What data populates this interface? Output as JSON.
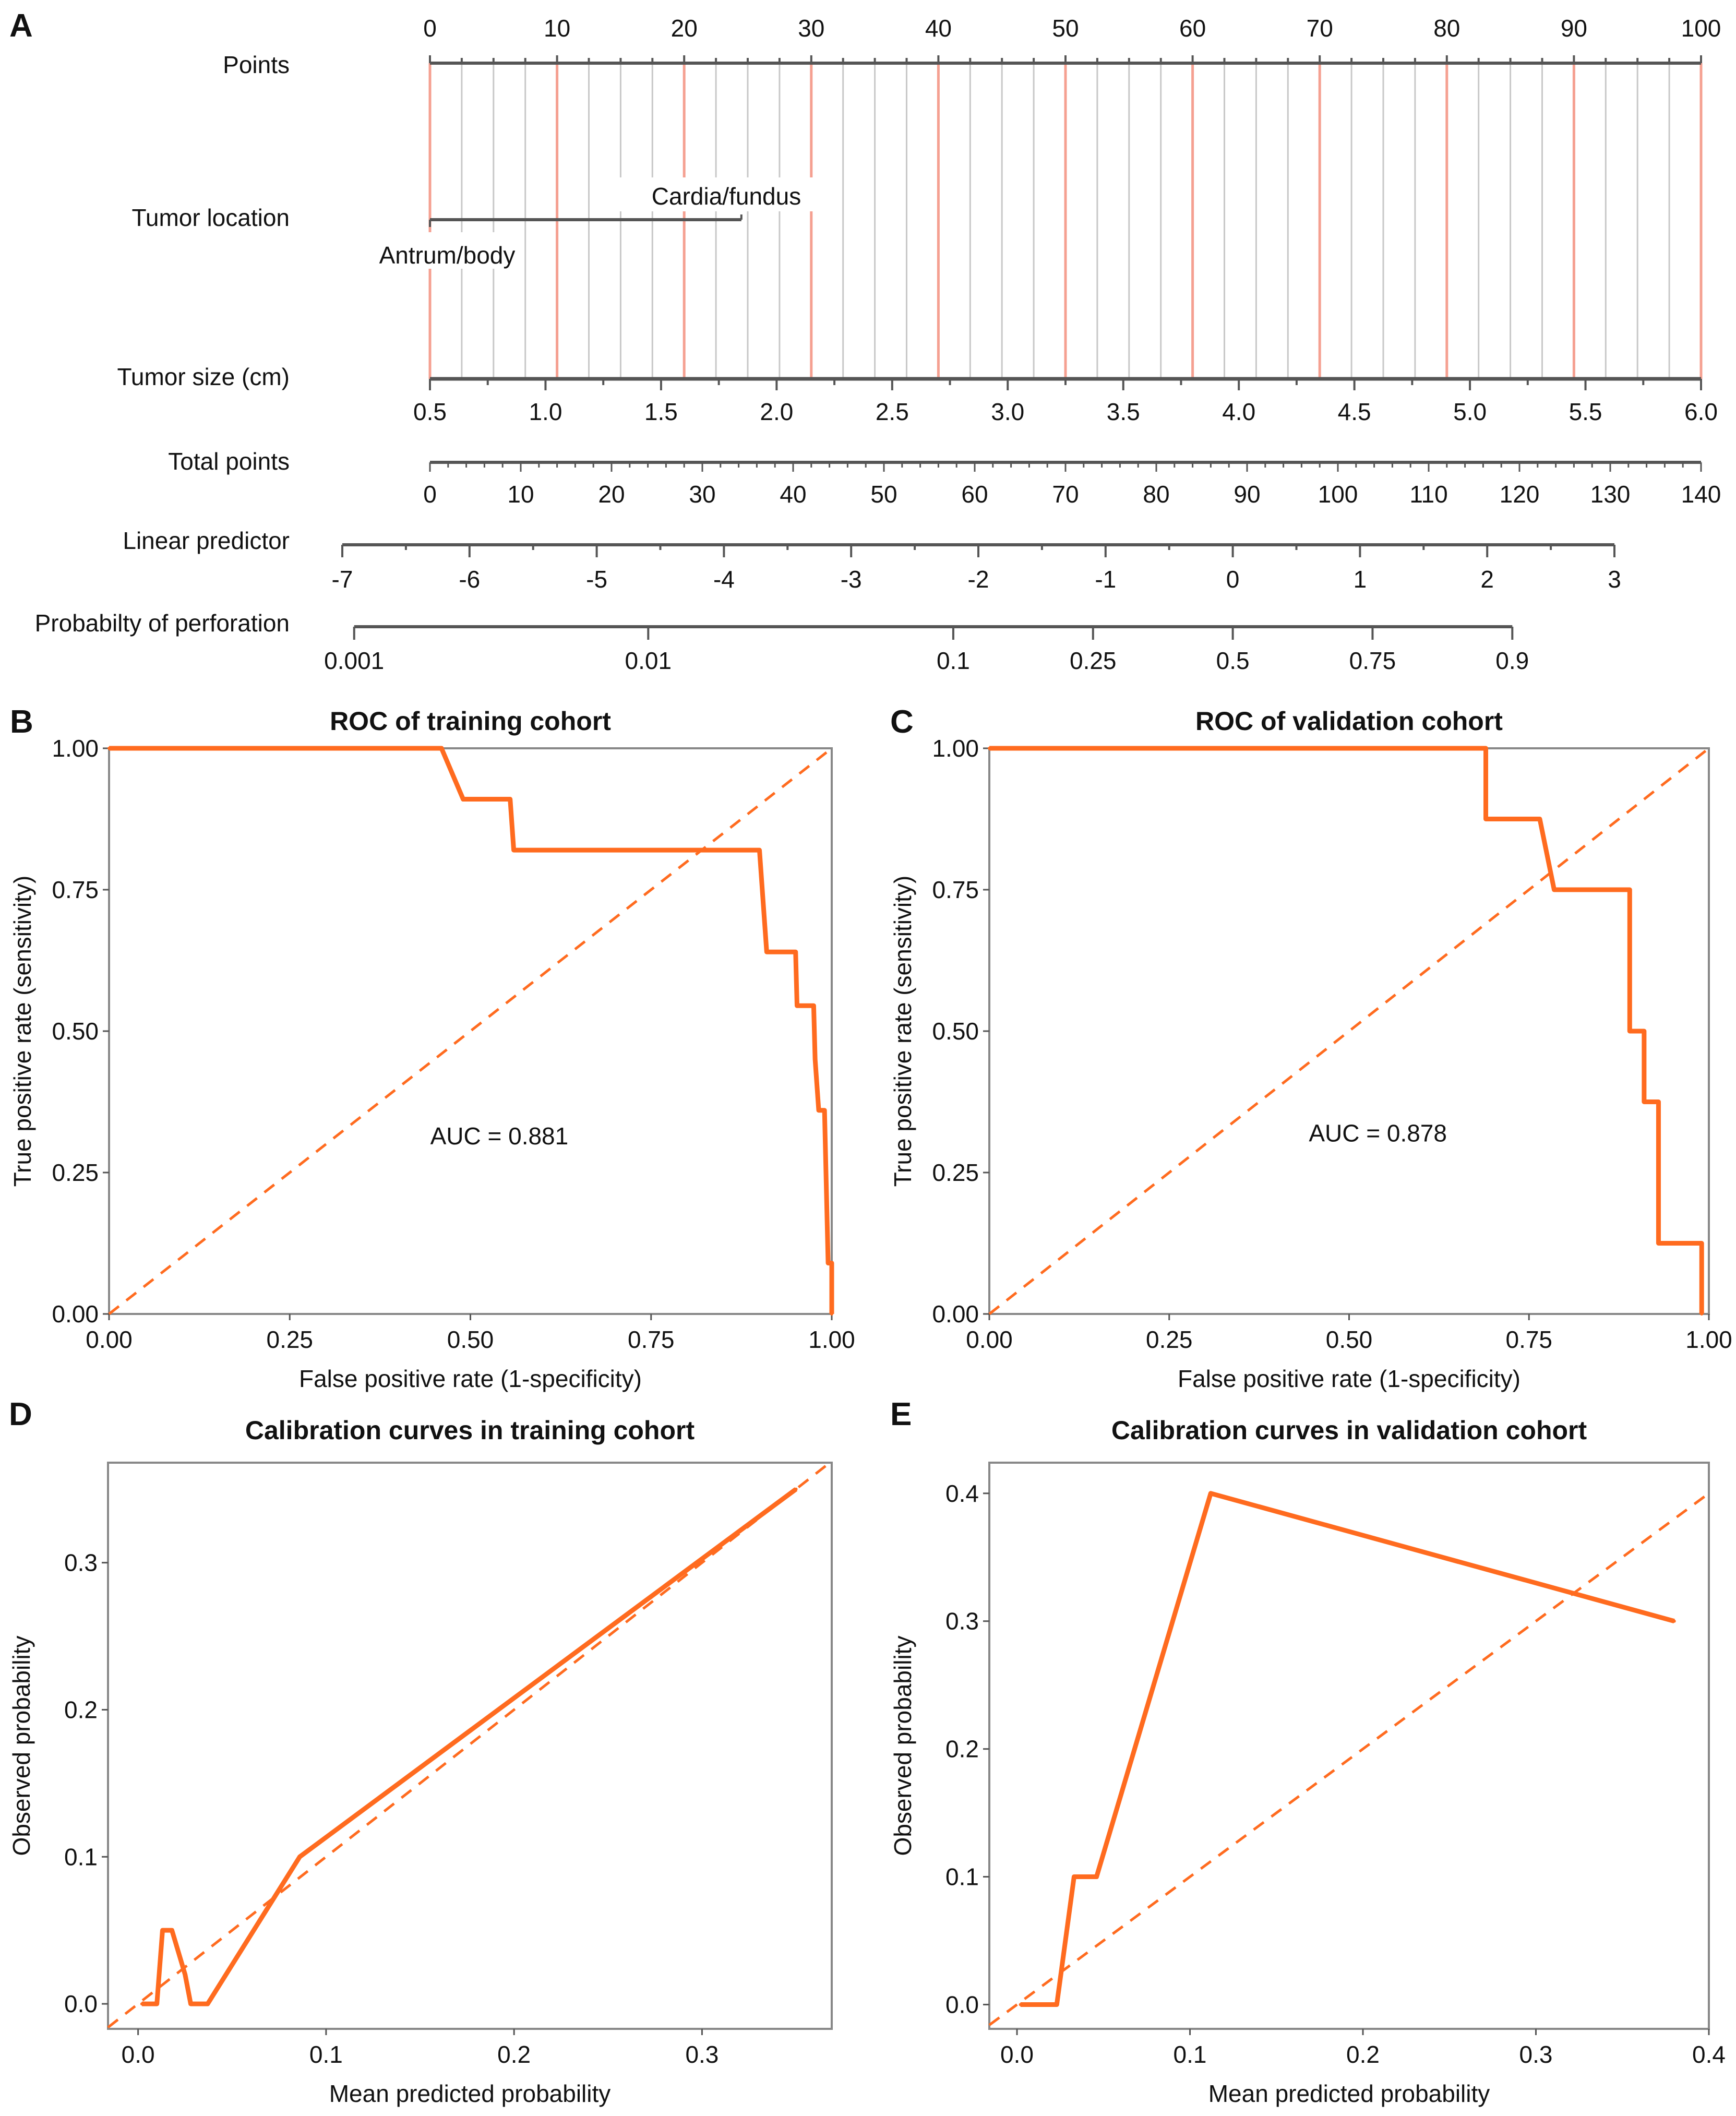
{
  "colors": {
    "curve": "#FF6B1F",
    "diag": "#FF6B1F",
    "refline": "#F5A091",
    "gridline": "#C8C8C8",
    "axis": "#555555"
  },
  "chart_data": [
    {
      "panel": "A",
      "type": "nomogram",
      "rows": [
        {
          "label": "Points",
          "ticks": [
            0,
            10,
            20,
            30,
            40,
            50,
            60,
            70,
            80,
            90,
            100
          ],
          "range": [
            0,
            100
          ]
        },
        {
          "label": "Tumor location",
          "levels": [
            {
              "name": "Antrum/body",
              "points": 0
            },
            {
              "name": "Cardia/fundus",
              "points": 24.5
            }
          ]
        },
        {
          "label": "Tumor size (cm)",
          "ticks": [
            "0.5",
            "1.0",
            "1.5",
            "2.0",
            "2.5",
            "3.0",
            "3.5",
            "4.0",
            "4.5",
            "5.0",
            "5.5",
            "6.0"
          ],
          "range": [
            0.5,
            6.0
          ]
        },
        {
          "label": "Total points",
          "ticks": [
            0,
            10,
            20,
            30,
            40,
            50,
            60,
            70,
            80,
            90,
            100,
            110,
            120,
            130,
            140
          ],
          "range": [
            0,
            140
          ]
        },
        {
          "label": "Linear predictor",
          "ticks": [
            -7,
            -6,
            -5,
            -4,
            -3,
            -2,
            -1,
            0,
            1,
            2,
            3
          ],
          "range": [
            -7,
            3
          ]
        },
        {
          "label": "Probabilty of perforation",
          "ticks": [
            "0.001",
            "0.01",
            "0.1",
            "0.25",
            "0.5",
            "0.75",
            "0.9"
          ]
        }
      ]
    },
    {
      "panel": "B",
      "type": "line",
      "title": "ROC of training cohort",
      "xlabel": "False positive rate (1-specificity)",
      "ylabel": "True positive rate (sensitivity)",
      "xlim": [
        0,
        1
      ],
      "ylim": [
        0,
        1
      ],
      "xticks": [
        "0.00",
        "0.25",
        "0.50",
        "0.75",
        "1.00"
      ],
      "yticks": [
        "0.00",
        "0.25",
        "0.50",
        "0.75",
        "1.00"
      ],
      "annotation": "AUC = 0.881",
      "annotation_at": [
        0.69,
        0.3
      ],
      "grid": false,
      "series": [
        {
          "x": [
            0,
            0.46,
            0.49,
            0.555,
            0.56,
            0.9,
            0.905,
            0.91,
            0.95,
            0.952,
            0.975,
            0.977,
            0.982,
            0.99,
            0.995,
            1,
            1
          ],
          "y": [
            1,
            1,
            0.91,
            0.91,
            0.82,
            0.82,
            0.73,
            0.64,
            0.64,
            0.545,
            0.545,
            0.45,
            0.36,
            0.36,
            0.09,
            0.09,
            0
          ]
        }
      ],
      "diagonal": true
    },
    {
      "panel": "C",
      "type": "line",
      "title": "ROC of validation cohort",
      "xlabel": "False positive rate (1-specificity)",
      "ylabel": "True positive rate (sensitivity)",
      "xlim": [
        0,
        1
      ],
      "ylim": [
        0,
        1
      ],
      "xticks": [
        "0.00",
        "0.25",
        "0.50",
        "0.75",
        "1.00"
      ],
      "yticks": [
        "0.00",
        "0.25",
        "0.50",
        "0.75",
        "1.00"
      ],
      "annotation": "AUC = 0.878",
      "annotation_at": [
        0.69,
        0.305
      ],
      "grid": false,
      "series": [
        {
          "x": [
            0,
            0.69,
            0.69,
            0.765,
            0.785,
            0.89,
            0.89,
            0.91,
            0.91,
            0.93,
            0.93,
            0.99,
            0.99
          ],
          "y": [
            1,
            1,
            0.875,
            0.875,
            0.75,
            0.75,
            0.5,
            0.5,
            0.375,
            0.375,
            0.125,
            0.125,
            0
          ]
        }
      ],
      "diagonal": true
    },
    {
      "panel": "D",
      "type": "line",
      "title": "Calibration curves in training cohort",
      "xlabel": "Mean predicted probability",
      "ylabel": "Observed probability",
      "xlim": [
        -0.016,
        0.369
      ],
      "ylim": [
        -0.017,
        0.368
      ],
      "xticks": [
        "0.0",
        "0.1",
        "0.2",
        "0.3"
      ],
      "yticks": [
        "0.0",
        "0.1",
        "0.2",
        "0.3"
      ],
      "grid": false,
      "series": [
        {
          "x": [
            0.002,
            0.006,
            0.01,
            0.013,
            0.018,
            0.025,
            0.028,
            0.037,
            0.086,
            0.35
          ],
          "y": [
            0,
            0,
            0,
            0.05,
            0.05,
            0.02,
            0,
            0,
            0.1,
            0.35
          ]
        }
      ],
      "diagonal": true
    },
    {
      "panel": "E",
      "type": "line",
      "title": "Calibration curves in validation cohort",
      "xlabel": "Mean predicted probability",
      "ylabel": "Observed probability",
      "xlim": [
        -0.016,
        0.4
      ],
      "ylim": [
        -0.019,
        0.424
      ],
      "xticks": [
        "0.0",
        "0.1",
        "0.2",
        "0.3",
        "0.4"
      ],
      "yticks": [
        "0.0",
        "0.1",
        "0.2",
        "0.3",
        "0.4"
      ],
      "grid": false,
      "series": [
        {
          "x": [
            0.002,
            0.01,
            0.023,
            0.033,
            0.046,
            0.112,
            0.38
          ],
          "y": [
            0,
            0,
            0,
            0.1,
            0.1,
            0.4,
            0.3
          ]
        }
      ],
      "diagonal": true
    }
  ]
}
